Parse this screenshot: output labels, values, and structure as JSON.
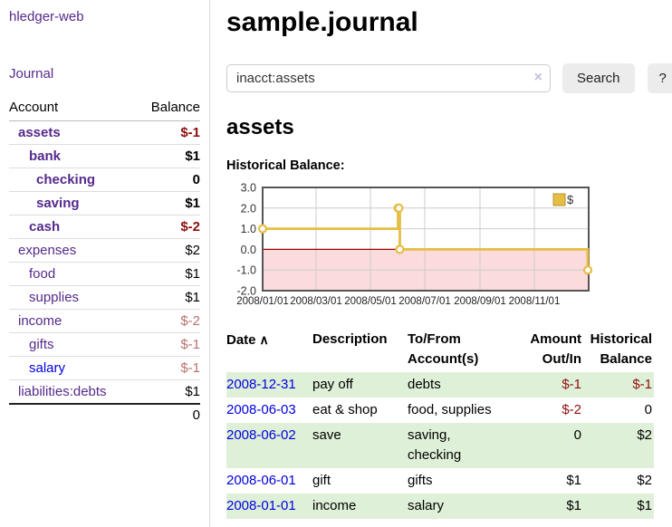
{
  "app": {
    "title": "hledger-web",
    "nav_journal": "Journal"
  },
  "sidebar": {
    "table": {
      "account_header": "Account",
      "balance_header": "Balance",
      "rows": [
        {
          "account": "assets",
          "balance": "$-1"
        },
        {
          "account": "bank",
          "balance": "$1"
        },
        {
          "account": "checking",
          "balance": "0"
        },
        {
          "account": "saving",
          "balance": "$1"
        },
        {
          "account": "cash",
          "balance": "$-2"
        },
        {
          "account": "expenses",
          "balance": "$2"
        },
        {
          "account": "food",
          "balance": "$1"
        },
        {
          "account": "supplies",
          "balance": "$1"
        },
        {
          "account": "income",
          "balance": "$-2"
        },
        {
          "account": "gifts",
          "balance": "$-1"
        },
        {
          "account": "salary",
          "balance": "$-1"
        },
        {
          "account": "liabilities:debts",
          "balance": "$1"
        }
      ],
      "total": "0"
    }
  },
  "header": {
    "title": "sample.journal"
  },
  "search": {
    "value": "inacct:assets",
    "clear_icon": "×",
    "search_label": "Search",
    "help_label": "?"
  },
  "main": {
    "account_heading": "assets",
    "chart_label": "Historical Balance:"
  },
  "chart_data": {
    "type": "line",
    "step": "after",
    "legend": "$",
    "line_color": "#e6bd45",
    "marker_fill": "#ffffff",
    "negative_fill": "#fbdbdb",
    "zero_line_color": "#990000",
    "grid_color": "#ccc",
    "border_color": "#555",
    "ylim": [
      -2,
      3
    ],
    "yticks": [
      3.0,
      2.0,
      1.0,
      0.0,
      -1.0,
      -2.0
    ],
    "x_total_days": 366,
    "xticks": [
      {
        "label": "2008/01/01",
        "day": 0
      },
      {
        "label": "2008/03/01",
        "day": 60
      },
      {
        "label": "2008/05/01",
        "day": 121
      },
      {
        "label": "2008/07/01",
        "day": 182
      },
      {
        "label": "2008/09/01",
        "day": 244
      },
      {
        "label": "2008/11/01",
        "day": 305
      }
    ],
    "points": [
      {
        "date": "2008-01-01",
        "day": 0,
        "value": 1
      },
      {
        "date": "2008-06-01",
        "day": 152,
        "value": 2
      },
      {
        "date": "2008-06-02",
        "day": 153,
        "value": 2
      },
      {
        "date": "2008-06-03",
        "day": 154,
        "value": 0
      },
      {
        "date": "2008-12-31",
        "day": 365,
        "value": -1
      }
    ]
  },
  "register": {
    "headers": {
      "date": "Date",
      "sort_icon": "∧",
      "description": "Description",
      "accounts": "To/From Account(s)",
      "amount": "Amount Out/In",
      "balance": "Historical Balance"
    },
    "rows": [
      {
        "date": "2008-12-31",
        "description": "pay off",
        "accounts": "debts",
        "amount": "$-1",
        "balance": "$-1"
      },
      {
        "date": "2008-06-03",
        "description": "eat & shop",
        "accounts": "food, supplies",
        "amount": "$-2",
        "balance": "0"
      },
      {
        "date": "2008-06-02",
        "description": "save",
        "accounts": "saving, checking",
        "amount": "0",
        "balance": "$2"
      },
      {
        "date": "2008-06-01",
        "description": "gift",
        "accounts": "gifts",
        "amount": "$1",
        "balance": "$2"
      },
      {
        "date": "2008-01-01",
        "description": "income",
        "accounts": "salary",
        "amount": "$1",
        "balance": "$1"
      }
    ]
  }
}
